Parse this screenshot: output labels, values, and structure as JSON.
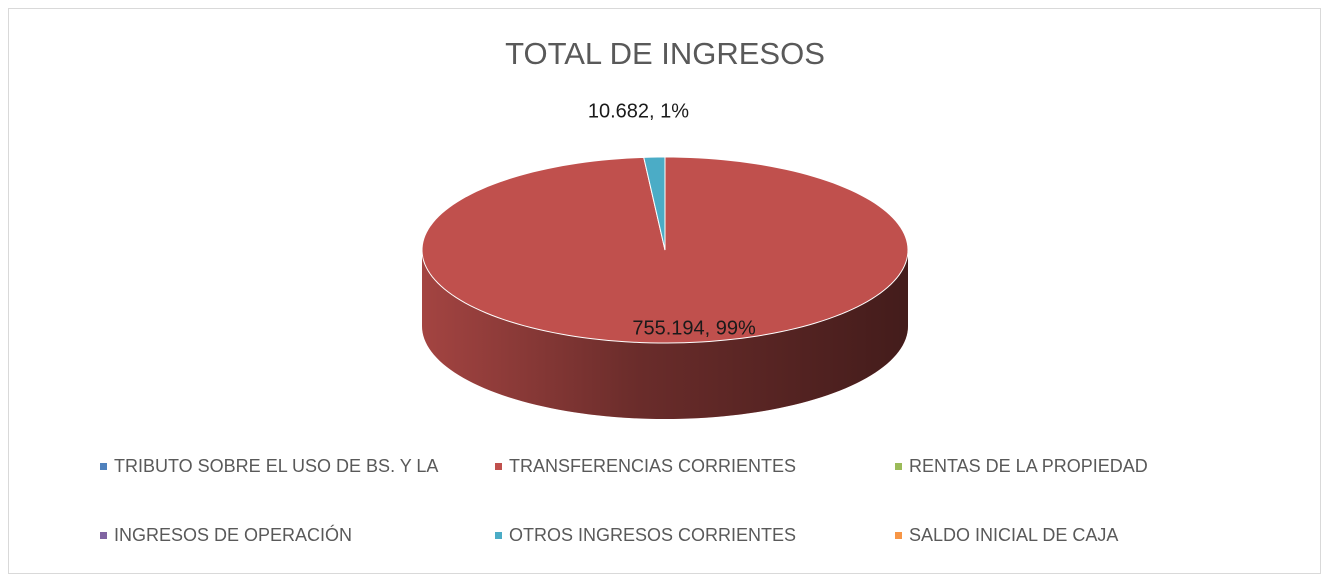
{
  "chart_data": {
    "type": "pie3d",
    "title": "TOTAL DE INGRESOS",
    "categories": [
      "TRIBUTO SOBRE EL USO DE BS. Y LA",
      "TRANSFERENCIAS CORRIENTES",
      "RENTAS DE LA PROPIEDAD",
      "INGRESOS DE OPERACIÓN",
      "OTROS INGRESOS CORRIENTES",
      "SALDO INICIAL DE CAJA"
    ],
    "values": [
      0,
      755194,
      0,
      0,
      10682,
      0
    ],
    "value_labels": [
      null,
      "755.194, 99%",
      null,
      null,
      "10.682, 1%",
      null
    ],
    "colors": [
      "#4f81bd",
      "#c0504d",
      "#9bbb59",
      "#8064a2",
      "#4bacc6",
      "#f79646"
    ],
    "legend": "bottom"
  }
}
